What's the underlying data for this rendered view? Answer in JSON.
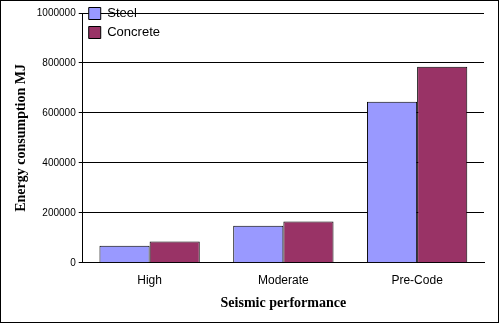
{
  "chart_data": {
    "type": "bar",
    "categories": [
      "High",
      "Moderate",
      "Pre-Code"
    ],
    "series": [
      {
        "name": "Steel",
        "color": "#9999ff",
        "values": [
          68000,
          148000,
          645000
        ]
      },
      {
        "name": "Concrete",
        "color": "#993366",
        "values": [
          85000,
          165000,
          785000
        ]
      }
    ],
    "x_label": "Seismic performance",
    "y_label": "Energy consumption MJ",
    "ylim": [
      0,
      1000000
    ],
    "yticks": [
      0,
      200000,
      400000,
      600000,
      800000,
      1000000
    ],
    "grid": true,
    "legend": "upper left"
  }
}
